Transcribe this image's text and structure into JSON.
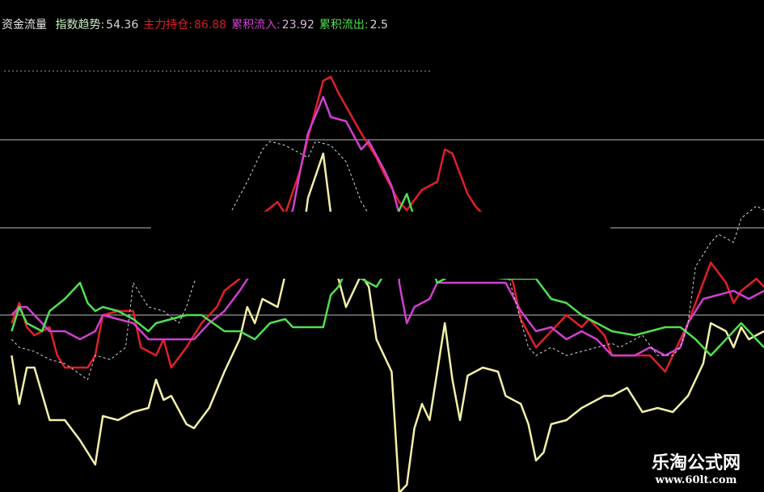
{
  "chart_data": {
    "type": "line",
    "title": "资金流量",
    "xlabel": "",
    "ylabel": "",
    "xlim": [
      0,
      100
    ],
    "ylim": [
      -2,
      120
    ],
    "grid": false,
    "legend": "top-left",
    "reference_lines": [
      102.4,
      85.4,
      63.6,
      42
    ],
    "legend_items": [
      {
        "label": "指数趋势:",
        "value": "54.36",
        "color": "#c8eec0",
        "value_color": "#d8d8d8"
      },
      {
        "label": "主力持仓:",
        "value": "86.88",
        "color": "#e0202a",
        "value_color": "#c82030"
      },
      {
        "label": "累积流入:",
        "value": "23.92",
        "color": "#d040d0",
        "value_color": "#d8b8d8"
      },
      {
        "label": "累积流出:",
        "value": "2.5",
        "color": "#50e050",
        "value_color": "#d8d8d8"
      }
    ],
    "series": [
      {
        "color": "#f4f0a8",
        "style": "solid",
        "points": [
          [
            1,
            32
          ],
          [
            2,
            20
          ],
          [
            3,
            29
          ],
          [
            4,
            29
          ],
          [
            6,
            16
          ],
          [
            8,
            16
          ],
          [
            10,
            11
          ],
          [
            12,
            5
          ],
          [
            13,
            17
          ],
          [
            15,
            16
          ],
          [
            17,
            18
          ],
          [
            19,
            19
          ],
          [
            20,
            26
          ],
          [
            21,
            21
          ],
          [
            22,
            22
          ],
          [
            24,
            15
          ],
          [
            25,
            14
          ],
          [
            27,
            19
          ],
          [
            29,
            28
          ],
          [
            30,
            32
          ],
          [
            31,
            36
          ],
          [
            32,
            44
          ],
          [
            33,
            40
          ],
          [
            34,
            46
          ],
          [
            36,
            44
          ],
          [
            37,
            52
          ],
          [
            39,
            57
          ],
          [
            40,
            71
          ],
          [
            42,
            82
          ],
          [
            43,
            67
          ],
          [
            44,
            51
          ],
          [
            45,
            44
          ],
          [
            47,
            52
          ],
          [
            48,
            49
          ],
          [
            49,
            36
          ],
          [
            50,
            32
          ],
          [
            51,
            28
          ],
          [
            52,
            -2
          ],
          [
            53,
            0
          ],
          [
            54,
            14
          ],
          [
            55,
            20
          ],
          [
            56,
            16
          ],
          [
            57,
            28
          ],
          [
            58,
            40
          ],
          [
            59,
            26
          ],
          [
            60,
            16
          ],
          [
            61,
            27
          ],
          [
            63,
            29
          ],
          [
            65,
            28
          ],
          [
            66,
            22
          ],
          [
            68,
            20
          ],
          [
            69,
            15
          ],
          [
            70,
            6
          ],
          [
            71,
            8
          ],
          [
            72,
            15
          ],
          [
            74,
            16
          ],
          [
            76,
            19
          ],
          [
            77,
            20
          ],
          [
            79,
            22
          ],
          [
            80,
            22
          ],
          [
            82,
            24
          ],
          [
            84,
            18
          ],
          [
            86,
            19
          ],
          [
            88,
            18
          ],
          [
            90,
            22
          ],
          [
            92,
            30
          ],
          [
            93,
            40
          ],
          [
            95,
            38
          ],
          [
            96,
            34
          ],
          [
            97,
            39
          ],
          [
            98,
            36
          ],
          [
            100,
            38
          ]
        ]
      },
      {
        "color": "#e0202a",
        "style": "solid",
        "points": [
          [
            1,
            40
          ],
          [
            2,
            45
          ],
          [
            3,
            39
          ],
          [
            4,
            37
          ],
          [
            6,
            39
          ],
          [
            7,
            32
          ],
          [
            8,
            29
          ],
          [
            11,
            29
          ],
          [
            12,
            32
          ],
          [
            13,
            42
          ],
          [
            15,
            43
          ],
          [
            17,
            43
          ],
          [
            18,
            34
          ],
          [
            20,
            32
          ],
          [
            21,
            36
          ],
          [
            22,
            29
          ],
          [
            24,
            34
          ],
          [
            26,
            40
          ],
          [
            28,
            44
          ],
          [
            29,
            48
          ],
          [
            31,
            51
          ],
          [
            34,
            67
          ],
          [
            36,
            70
          ],
          [
            37,
            67
          ],
          [
            39,
            78
          ],
          [
            40,
            86
          ],
          [
            42,
            100
          ],
          [
            43,
            101
          ],
          [
            44,
            97
          ],
          [
            47,
            87
          ],
          [
            49,
            81
          ],
          [
            50,
            77
          ],
          [
            52,
            70
          ],
          [
            53,
            68
          ],
          [
            55,
            73
          ],
          [
            57,
            75
          ],
          [
            58,
            83
          ],
          [
            59,
            82
          ],
          [
            61,
            72
          ],
          [
            62,
            69
          ],
          [
            63,
            67
          ],
          [
            67,
            50
          ],
          [
            68,
            41
          ],
          [
            70,
            34
          ],
          [
            72,
            38
          ],
          [
            74,
            42
          ],
          [
            76,
            39
          ],
          [
            77,
            41
          ],
          [
            79,
            37
          ],
          [
            80,
            32
          ],
          [
            83,
            32
          ],
          [
            85,
            32
          ],
          [
            87,
            28
          ],
          [
            88,
            32
          ],
          [
            90,
            40
          ],
          [
            92,
            50
          ],
          [
            93,
            55
          ],
          [
            95,
            50
          ],
          [
            96,
            45
          ],
          [
            97,
            48
          ],
          [
            99,
            51
          ],
          [
            100,
            49
          ]
        ]
      },
      {
        "color": "#d040d0",
        "style": "solid",
        "points": [
          [
            1,
            42
          ],
          [
            2,
            44
          ],
          [
            3,
            44
          ],
          [
            5,
            40
          ],
          [
            6,
            38
          ],
          [
            8,
            38
          ],
          [
            10,
            36
          ],
          [
            12,
            38
          ],
          [
            13,
            42
          ],
          [
            15,
            41
          ],
          [
            17,
            40
          ],
          [
            19,
            36
          ],
          [
            21,
            36
          ],
          [
            23,
            36
          ],
          [
            25,
            36
          ],
          [
            27,
            40
          ],
          [
            29,
            43
          ],
          [
            31,
            48
          ],
          [
            38,
            68
          ],
          [
            39,
            78
          ],
          [
            40,
            87
          ],
          [
            42,
            96
          ],
          [
            43,
            91
          ],
          [
            45,
            90
          ],
          [
            47,
            83
          ],
          [
            48,
            85
          ],
          [
            50,
            78
          ],
          [
            51,
            74
          ],
          [
            52,
            67
          ],
          [
            52,
            50
          ],
          [
            53,
            40
          ],
          [
            54,
            44
          ],
          [
            56,
            46
          ],
          [
            57,
            50
          ],
          [
            66,
            50
          ],
          [
            68,
            43
          ],
          [
            70,
            38
          ],
          [
            72,
            39
          ],
          [
            74,
            36
          ],
          [
            76,
            38
          ],
          [
            78,
            36
          ],
          [
            80,
            32
          ],
          [
            83,
            32
          ],
          [
            85,
            34
          ],
          [
            87,
            32
          ],
          [
            89,
            34
          ],
          [
            90,
            40
          ],
          [
            92,
            46
          ],
          [
            94,
            47
          ],
          [
            96,
            48
          ],
          [
            98,
            46
          ],
          [
            100,
            48
          ]
        ]
      },
      {
        "color": "#50e050",
        "style": "solid",
        "points": [
          [
            1,
            38
          ],
          [
            2,
            44
          ],
          [
            3,
            40
          ],
          [
            5,
            38
          ],
          [
            6,
            43
          ],
          [
            8,
            46
          ],
          [
            10,
            50
          ],
          [
            11,
            45
          ],
          [
            12,
            43
          ],
          [
            13,
            44
          ],
          [
            15,
            43
          ],
          [
            17,
            41
          ],
          [
            19,
            38
          ],
          [
            20,
            40
          ],
          [
            22,
            41
          ],
          [
            24,
            42
          ],
          [
            26,
            42
          ],
          [
            29,
            38
          ],
          [
            31,
            38
          ],
          [
            33,
            36
          ],
          [
            35,
            40
          ],
          [
            37,
            41
          ],
          [
            38,
            39
          ],
          [
            40,
            39
          ],
          [
            42,
            39
          ],
          [
            43,
            47
          ],
          [
            44,
            49
          ],
          [
            45,
            53
          ],
          [
            48,
            50
          ],
          [
            49,
            49
          ],
          [
            51,
            55
          ],
          [
            52,
            68
          ],
          [
            53,
            72
          ],
          [
            54,
            66
          ],
          [
            57,
            50
          ],
          [
            59,
            52
          ],
          [
            61,
            52
          ],
          [
            66,
            51
          ],
          [
            68,
            51
          ],
          [
            70,
            51
          ],
          [
            72,
            46
          ],
          [
            74,
            45
          ],
          [
            76,
            42
          ],
          [
            78,
            40
          ],
          [
            80,
            38
          ],
          [
            83,
            37
          ],
          [
            85,
            38
          ],
          [
            87,
            39
          ],
          [
            89,
            39
          ],
          [
            91,
            36
          ],
          [
            93,
            32
          ],
          [
            95,
            36
          ],
          [
            97,
            40
          ],
          [
            100,
            34
          ]
        ]
      },
      {
        "color": "#d8d8d8",
        "style": "dashed",
        "points": [
          [
            1,
            36
          ],
          [
            2,
            34
          ],
          [
            4,
            33
          ],
          [
            6,
            31
          ],
          [
            8,
            30
          ],
          [
            11,
            26
          ],
          [
            12,
            32
          ],
          [
            14,
            31
          ],
          [
            16,
            34
          ],
          [
            17,
            50
          ],
          [
            19,
            44
          ],
          [
            21,
            43
          ],
          [
            23,
            40
          ],
          [
            24,
            44
          ],
          [
            25,
            50
          ],
          [
            26,
            54
          ],
          [
            28,
            60
          ],
          [
            30,
            68
          ],
          [
            32,
            75
          ],
          [
            34,
            83
          ],
          [
            35,
            85
          ],
          [
            37,
            84
          ],
          [
            38,
            83
          ],
          [
            40,
            81
          ],
          [
            41,
            85
          ],
          [
            43,
            84
          ],
          [
            45,
            80
          ],
          [
            47,
            70
          ],
          [
            48,
            67
          ],
          [
            59,
            60
          ],
          [
            66,
            54
          ],
          [
            69,
            34
          ],
          [
            70,
            32
          ],
          [
            72,
            34
          ],
          [
            74,
            32
          ],
          [
            76,
            33
          ],
          [
            78,
            34
          ],
          [
            80,
            35
          ],
          [
            81,
            34
          ],
          [
            84,
            37
          ],
          [
            86,
            32
          ],
          [
            88,
            32
          ],
          [
            89,
            34
          ],
          [
            90,
            40
          ],
          [
            91,
            54
          ],
          [
            93,
            60
          ],
          [
            94,
            62
          ],
          [
            96,
            60
          ],
          [
            97,
            66
          ],
          [
            99,
            69
          ],
          [
            100,
            68
          ]
        ]
      }
    ]
  },
  "watermark": {
    "name": "乐淘公式网",
    "url": "www.60lt.com"
  }
}
